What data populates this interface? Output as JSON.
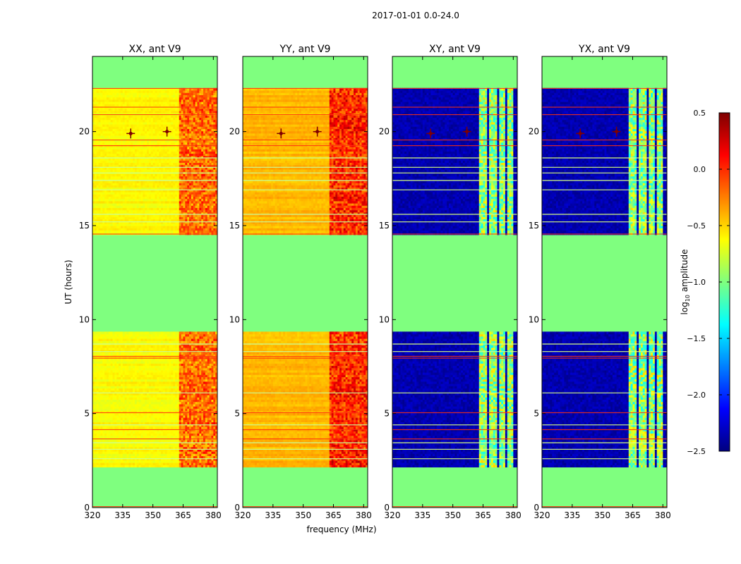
{
  "figure": {
    "suptitle": "2017-01-01 0.0-24.0",
    "xlabel": "frequency (MHz)",
    "ylabel": "UT (hours)"
  },
  "chart_data": {
    "type": "heatmap",
    "panels": [
      {
        "title": "XX, ant V9",
        "kind": "auto-yy",
        "hot_start_mhz": 363
      },
      {
        "title": "YY, ant V9",
        "kind": "auto-yy",
        "hot_start_mhz": 363
      },
      {
        "title": "XY, ant V9",
        "kind": "cross",
        "hot_start_mhz": 363
      },
      {
        "title": "YX, ant V9",
        "kind": "cross",
        "hot_start_mhz": 363
      }
    ],
    "x_range": [
      320,
      382
    ],
    "x_ticks": [
      320,
      335,
      350,
      365,
      380
    ],
    "y_range": [
      0,
      24
    ],
    "y_ticks": [
      0,
      5,
      10,
      15,
      20
    ],
    "data_blocks_ut": [
      [
        2.2,
        9.4
      ],
      [
        14.5,
        22.3
      ]
    ],
    "flagged_rows_ut": [
      0.05,
      22.3,
      14.55,
      8.05,
      7.95,
      5.05,
      4.15,
      3.65,
      19.25,
      19.55,
      20.9,
      21.3
    ],
    "bright_rows_ut": [
      2.6,
      3.1,
      3.45,
      4.4,
      6.1,
      8.3,
      8.7,
      15.2,
      15.6,
      16.9,
      17.4,
      17.8,
      18.1,
      18.6
    ],
    "cross_hot_channels_mhz": [
      [
        363,
        367
      ],
      [
        368,
        371.5
      ],
      [
        373,
        376
      ],
      [
        377,
        380
      ]
    ],
    "rfi_points": [
      {
        "freq_mhz": 339,
        "ut": 19.9
      },
      {
        "freq_mhz": 357,
        "ut": 20.0
      }
    ],
    "colorbar": {
      "label": "log10 amplitude",
      "label_main": "log",
      "label_sub": "10",
      "label_rest": " amplitude",
      "min": -2.5,
      "max": 0.5,
      "ticks": [
        {
          "value": -2.5,
          "label": "−2.5"
        },
        {
          "value": -2.0,
          "label": "−2.0"
        },
        {
          "value": -1.5,
          "label": "−1.5"
        },
        {
          "value": -1.0,
          "label": "−1.0"
        },
        {
          "value": -0.5,
          "label": "−0.5"
        },
        {
          "value": 0.0,
          "label": "0.0"
        },
        {
          "value": 0.5,
          "label": "0.5"
        }
      ],
      "colormap": [
        "#00007f",
        "#0000ff",
        "#007fff",
        "#00ffff",
        "#7fff7f",
        "#ffff00",
        "#ff7f00",
        "#ff0000",
        "#7f0000"
      ],
      "masked_color": "#7fff7f"
    }
  }
}
